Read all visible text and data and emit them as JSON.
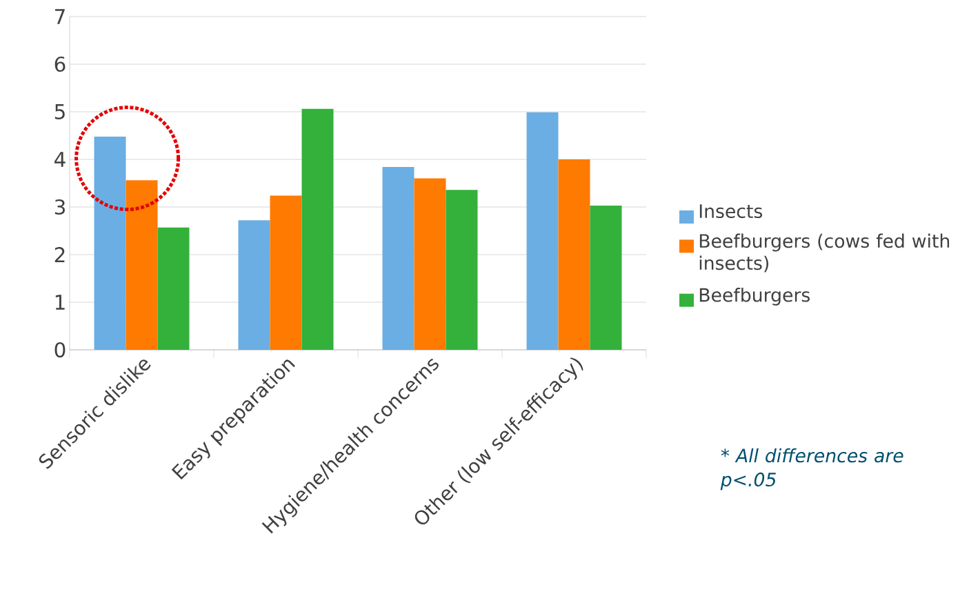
{
  "chart_data": {
    "type": "bar",
    "categories": [
      "Sensoric dislike",
      "Easy preparation",
      "Hygiene/health concerns",
      "Other (low self-efficacy)"
    ],
    "series": [
      {
        "name": "Insects",
        "color": "#6aaee4",
        "values": [
          4.48,
          2.72,
          3.84,
          4.99
        ]
      },
      {
        "name": "Beefburgers (cows fed with insects)",
        "color": "#ff7a00",
        "values": [
          3.56,
          3.24,
          3.6,
          4.0
        ]
      },
      {
        "name": "Beefburgers",
        "color": "#33b13b",
        "values": [
          2.57,
          5.06,
          3.36,
          3.03
        ]
      }
    ],
    "ylim": [
      0,
      7
    ],
    "yticks": [
      0,
      1,
      2,
      3,
      4,
      5,
      6,
      7
    ],
    "grid": "y",
    "legend": "right",
    "annotations": [
      "* All differences are p<.05"
    ]
  }
}
